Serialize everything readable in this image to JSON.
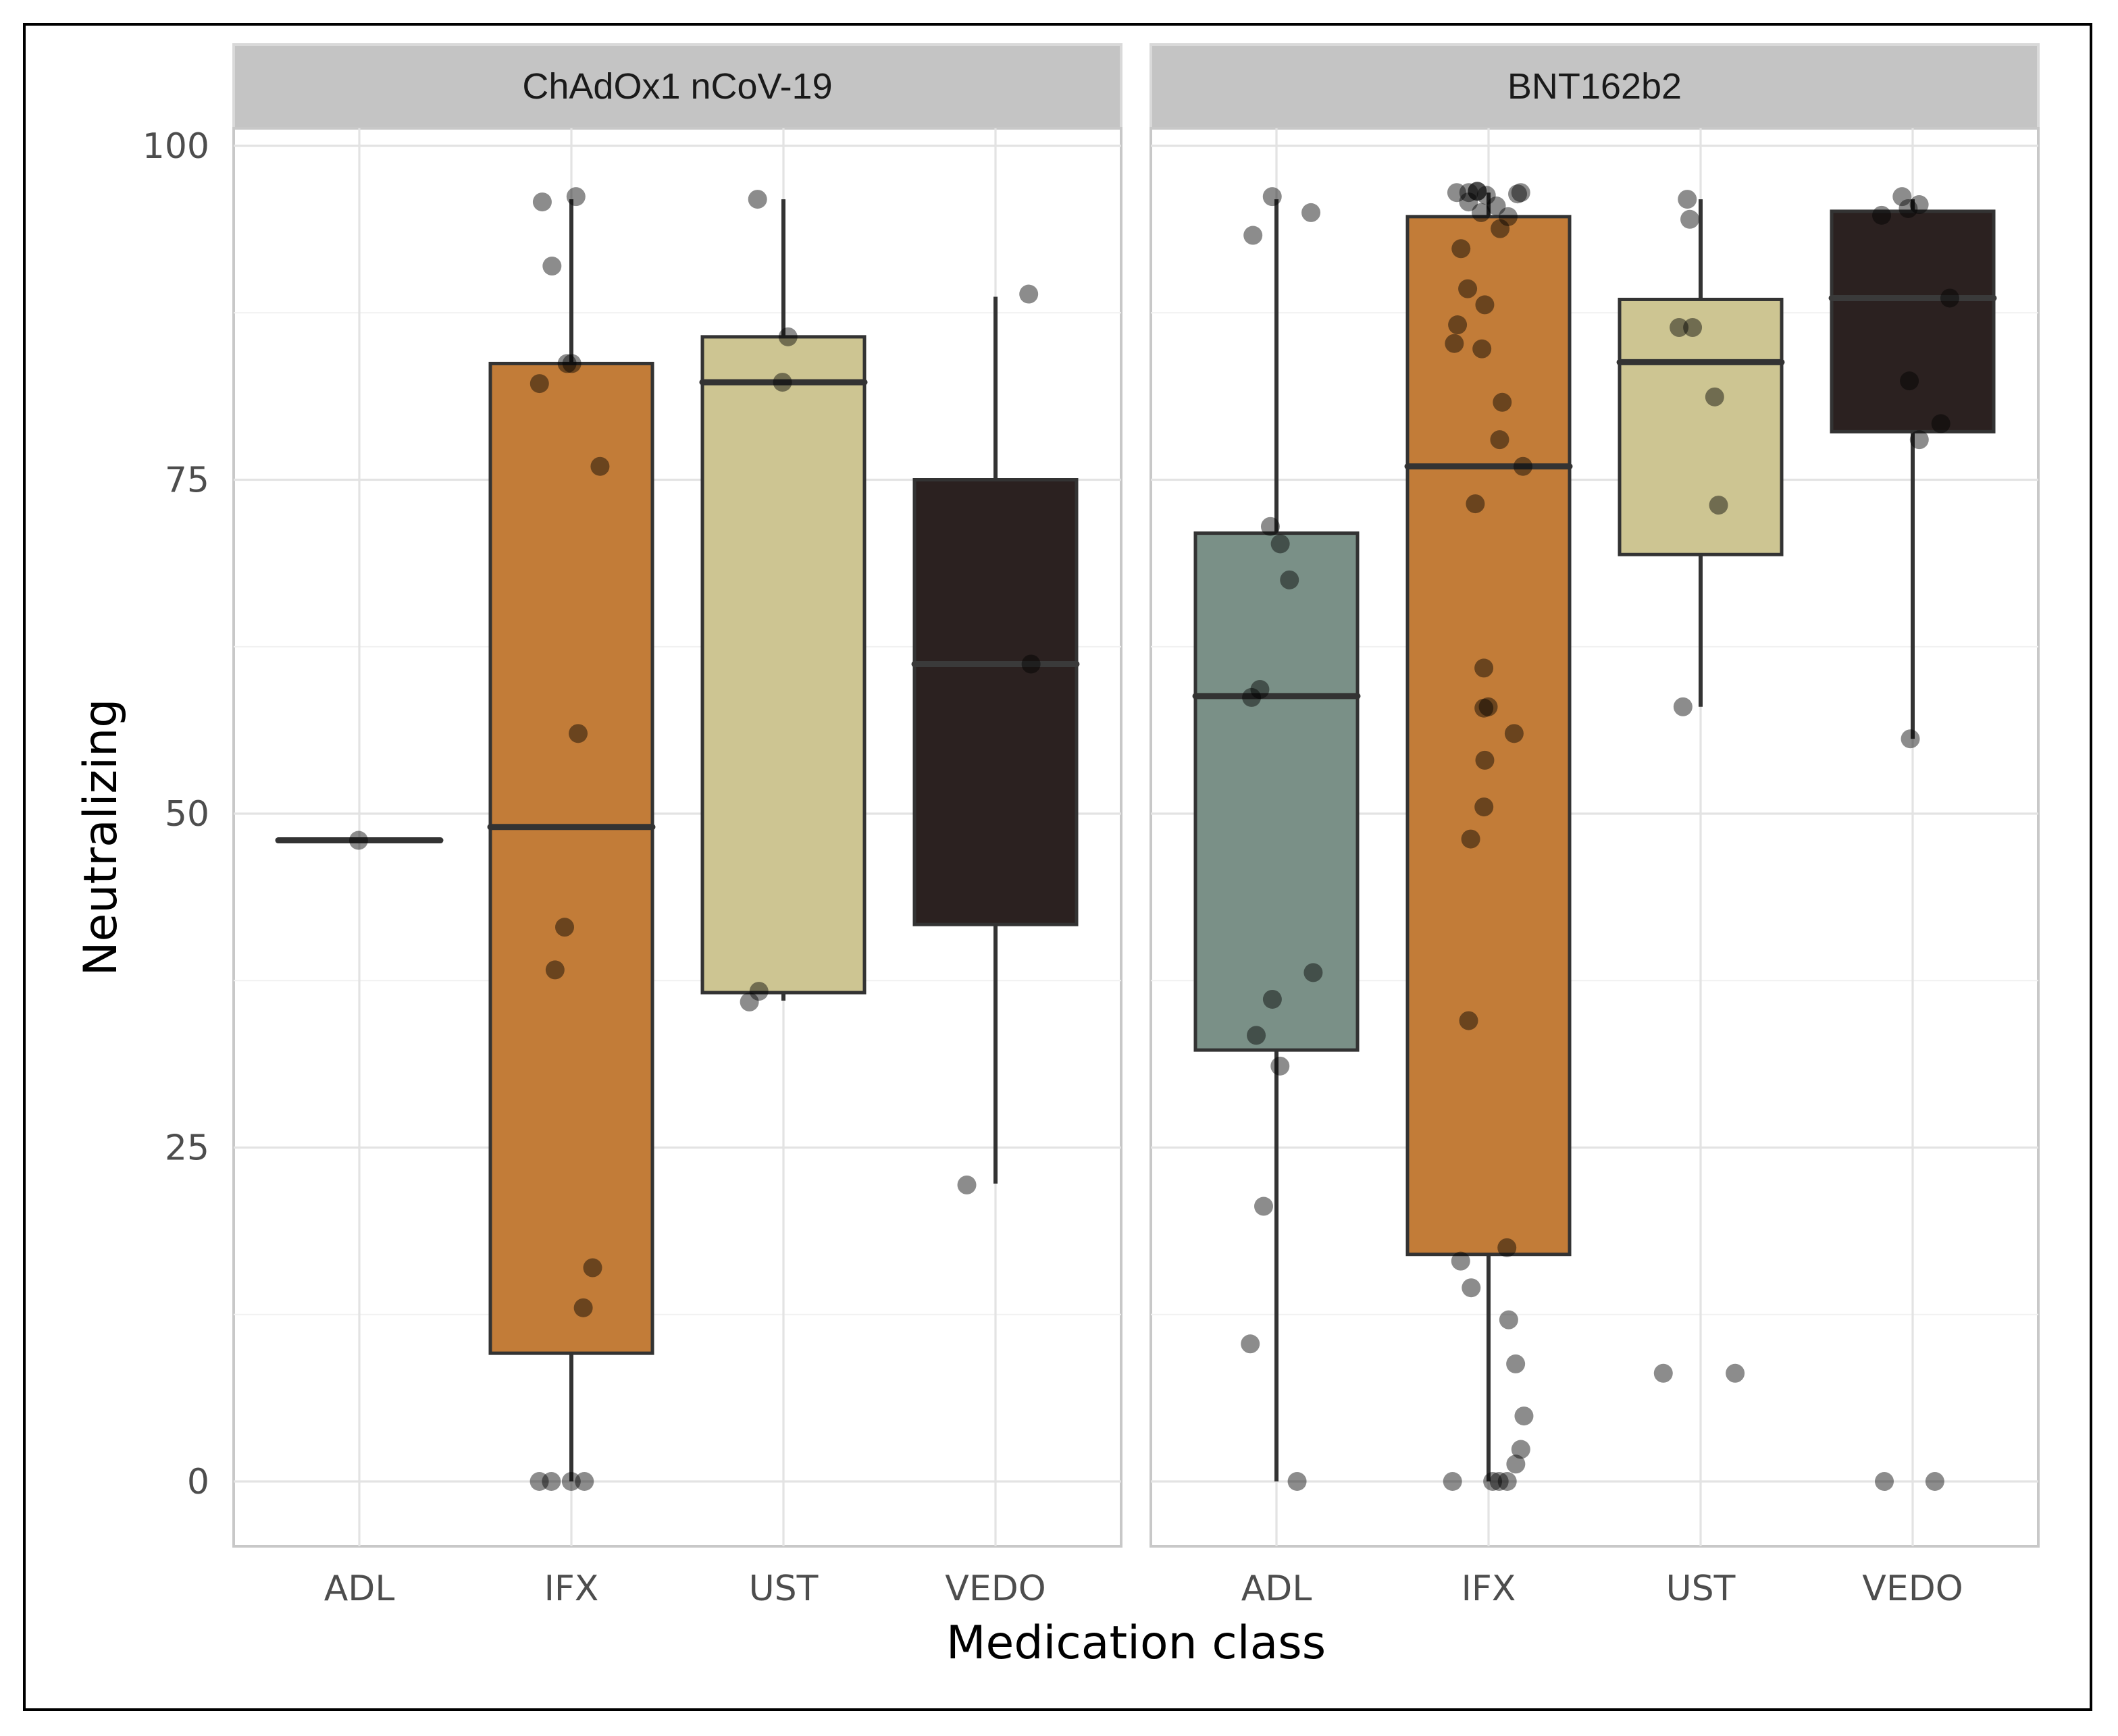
{
  "chart_data": {
    "type": "box",
    "xlabel": "Medication class",
    "ylabel": "Neutralizing",
    "ylim": [
      0,
      100
    ],
    "yticks": [
      "0",
      "25",
      "50",
      "75",
      "100"
    ],
    "categories": [
      "ADL",
      "IFX",
      "UST",
      "VEDO"
    ],
    "colors": {
      "ADL": "#7a9087",
      "IFX": "#c27c38",
      "UST": "#cdc592",
      "VEDO": "#2b2120"
    },
    "grid": true,
    "panels": [
      {
        "title": "ChAdOx1 nCoV-19",
        "boxes": [
          {
            "category": "ADL",
            "min": 48,
            "q1": 48,
            "median": 48,
            "q3": 48,
            "max": 48,
            "points": [
              48
            ]
          },
          {
            "category": "IFX",
            "min": 0,
            "q1": 9.6,
            "median": 49,
            "q3": 83.7,
            "max": 96,
            "points": [
              96.2,
              95.8,
              91,
              83.7,
              83.7,
              82.2,
              76,
              56,
              41.5,
              38.3,
              16,
              13,
              0,
              0,
              0,
              0
            ]
          },
          {
            "category": "UST",
            "min": 36,
            "q1": 36.6,
            "median": 82.3,
            "q3": 85.7,
            "max": 96,
            "points": [
              96,
              85.7,
              82.3,
              36.7,
              35.9
            ]
          },
          {
            "category": "VEDO",
            "min": 22.3,
            "q1": 41.7,
            "median": 61.2,
            "q3": 75,
            "max": 88.7,
            "points": [
              88.9,
              61.2,
              22.2
            ]
          }
        ]
      },
      {
        "title": "BNT162b2",
        "boxes": [
          {
            "category": "ADL",
            "min": 0,
            "q1": 32.3,
            "median": 58.8,
            "q3": 71,
            "max": 96,
            "points": [
              96.2,
              95,
              93.3,
              71.5,
              70.2,
              67.5,
              59.3,
              58.7,
              38.1,
              36.1,
              33.4,
              31.1,
              20.6,
              10.3,
              0
            ]
          },
          {
            "category": "IFX",
            "min": 0,
            "q1": 17,
            "median": 76,
            "q3": 94.7,
            "max": 96.5,
            "points": [
              96.6,
              96.6,
              96.5,
              96.5,
              96.5,
              96.4,
              96.3,
              95.8,
              95.5,
              95,
              94.7,
              93.8,
              92.3,
              89.3,
              88.1,
              86.6,
              85.2,
              84.8,
              80.8,
              78,
              76,
              73.2,
              60.9,
              58,
              57.9,
              56,
              54,
              50.5,
              48.1,
              34.5,
              17.5,
              16.5,
              14.5,
              12.1,
              8.8,
              4.9,
              2.4,
              1.3,
              0,
              0,
              0,
              0
            ]
          },
          {
            "category": "UST",
            "min": 58,
            "q1": 69.4,
            "median": 83.8,
            "q3": 88.5,
            "max": 96,
            "points": [
              96,
              94.5,
              86.4,
              86.4,
              81.2,
              73.1,
              58,
              8.1,
              8.1
            ]
          },
          {
            "category": "VEDO",
            "min": 55.6,
            "q1": 78.6,
            "median": 88.6,
            "q3": 95.1,
            "max": 96,
            "points": [
              96.2,
              95.6,
              95.3,
              94.8,
              88.6,
              82.4,
              79.2,
              78,
              55.6,
              0,
              0
            ]
          }
        ]
      }
    ]
  }
}
